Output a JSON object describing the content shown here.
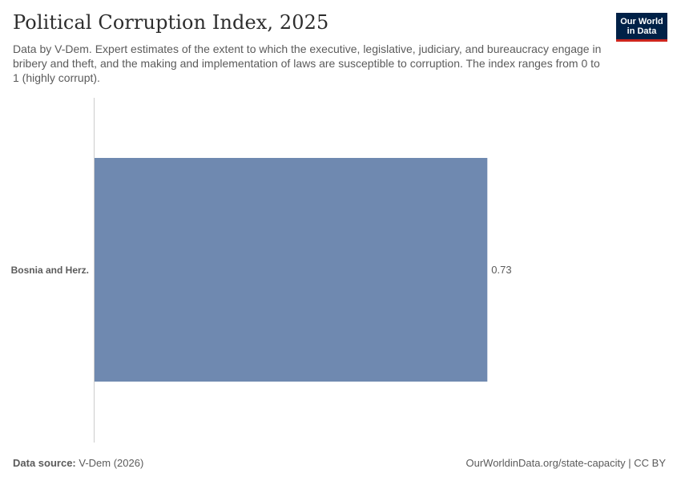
{
  "header": {
    "title": "Political Corruption Index, 2025",
    "subtitle": "Data by V-Dem. Expert estimates of the extent to which the executive, legislative, judiciary, and bureaucracy engage in bribery and theft, and the making and implementation of laws are susceptible to corruption. The index ranges from 0 to 1 (highly corrupt).",
    "logo_line1": "Our World",
    "logo_line2": "in Data"
  },
  "footer": {
    "source_label": "Data source:",
    "source_value": "V-Dem (2026)",
    "link": "OurWorldinData.org/state-capacity | CC BY"
  },
  "colors": {
    "bar": "#6f89b0",
    "axis": "#cccccc",
    "logo_bg": "#002147",
    "logo_accent": "#ce261e"
  },
  "chart_data": {
    "type": "bar",
    "orientation": "horizontal",
    "categories": [
      "Bosnia and Herz."
    ],
    "values": [
      0.73
    ],
    "value_labels": [
      "0.73"
    ],
    "xlim": [
      0,
      1
    ],
    "grid": false,
    "legend": "none"
  }
}
